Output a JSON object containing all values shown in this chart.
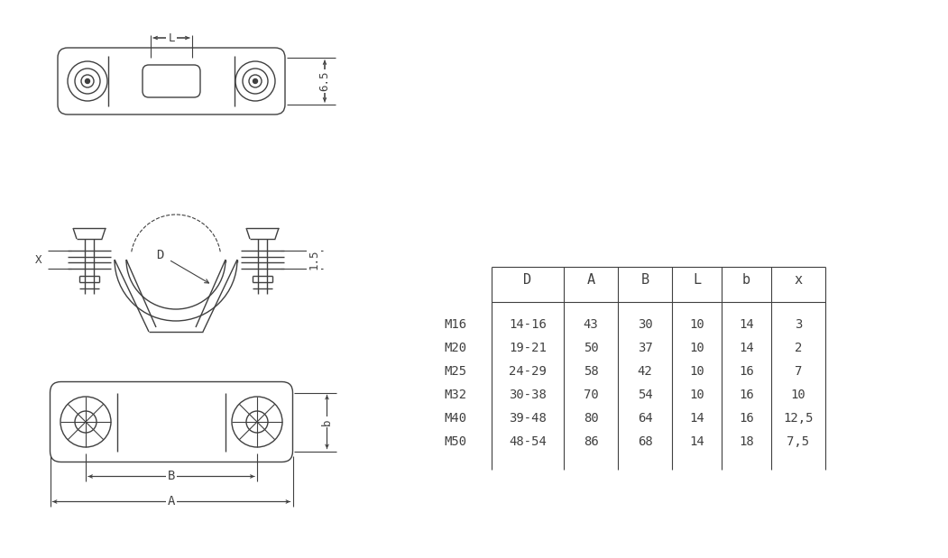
{
  "table_headers": [
    "",
    "D",
    "A",
    "B",
    "L",
    "b",
    "x"
  ],
  "table_rows": [
    [
      "M16",
      "14-16",
      "43",
      "30",
      "10",
      "14",
      "3"
    ],
    [
      "M20",
      "19-21",
      "50",
      "37",
      "10",
      "14",
      "2"
    ],
    [
      "M25",
      "24-29",
      "58",
      "42",
      "10",
      "16",
      "7"
    ],
    [
      "M32",
      "30-38",
      "70",
      "54",
      "10",
      "16",
      "10"
    ],
    [
      "M40",
      "39-48",
      "80",
      "64",
      "14",
      "16",
      "12,5"
    ],
    [
      "M50",
      "48-54",
      "86",
      "68",
      "14",
      "18",
      "7,5"
    ]
  ],
  "dim_65": "6.5",
  "dim_15": "1.5",
  "dim_L": "L",
  "dim_D": "D",
  "dim_B": "B",
  "dim_A": "A",
  "dim_b": "b",
  "dim_X": "X",
  "bg_color": "#ffffff",
  "line_color": "#404040",
  "text_color": "#404040"
}
